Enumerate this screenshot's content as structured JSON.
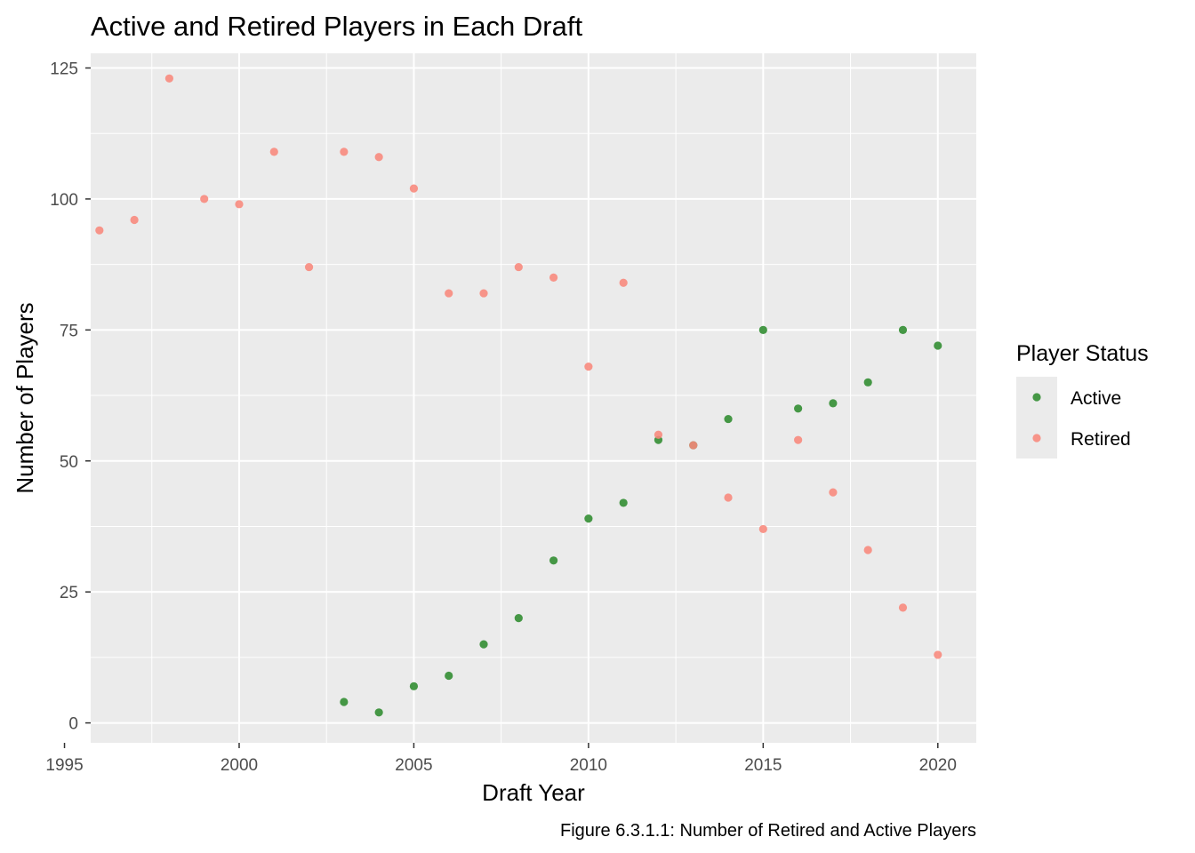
{
  "chart_data": {
    "type": "scatter",
    "title": "Active and Retired Players in Each Draft",
    "xlabel": "Draft Year",
    "ylabel": "Number of Players",
    "caption": "Figure 6.3.1.1: Number of Retired and Active Players",
    "xlim": [
      1995.75,
      2021.1
    ],
    "ylim": [
      -3.8,
      127.8
    ],
    "x_ticks": [
      1995,
      2000,
      2005,
      2010,
      2015,
      2020
    ],
    "y_ticks": [
      0,
      25,
      50,
      75,
      100,
      125
    ],
    "grid": true,
    "panel_background": "#ebebeb",
    "legend": {
      "title": "Player Status",
      "position": "right"
    },
    "series": [
      {
        "name": "Active",
        "color": "#2e8b2e",
        "x": [
          2003,
          2004,
          2005,
          2006,
          2007,
          2008,
          2009,
          2010,
          2011,
          2012,
          2013,
          2014,
          2015,
          2016,
          2017,
          2018,
          2019,
          2020
        ],
        "y": [
          4,
          2,
          7,
          9,
          15,
          20,
          31,
          39,
          42,
          54,
          53,
          58,
          75,
          60,
          61,
          65,
          75,
          72
        ]
      },
      {
        "name": "Retired",
        "color": "#f8877b",
        "x": [
          1996,
          1997,
          1998,
          1999,
          2000,
          2001,
          2002,
          2003,
          2004,
          2005,
          2006,
          2007,
          2008,
          2009,
          2010,
          2011,
          2012,
          2013,
          2014,
          2015,
          2016,
          2017,
          2018,
          2019,
          2020
        ],
        "y": [
          94,
          96,
          123,
          100,
          99,
          109,
          87,
          109,
          108,
          102,
          82,
          82,
          87,
          85,
          68,
          84,
          55,
          53,
          43,
          37,
          54,
          44,
          33,
          22,
          13
        ]
      }
    ]
  }
}
